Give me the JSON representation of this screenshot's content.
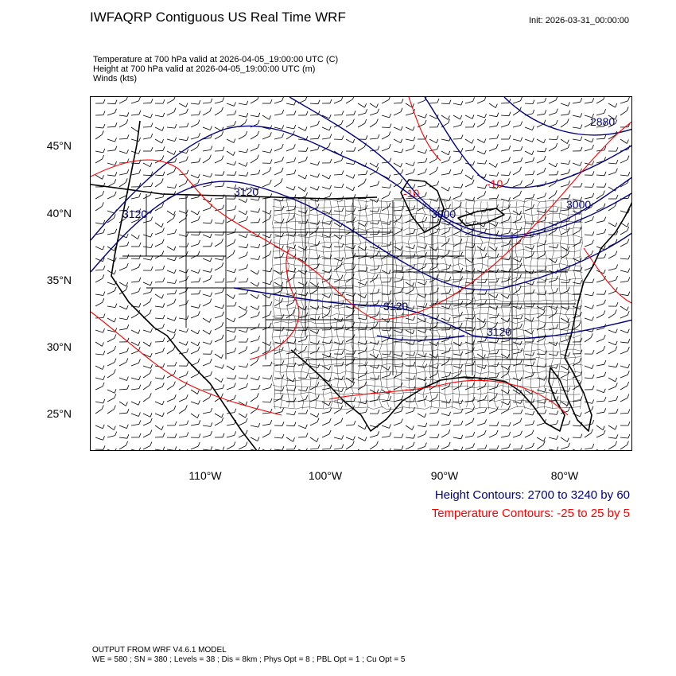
{
  "title": "IWFAQRP Contiguous US Real Time WRF",
  "init_time": "Init: 2026-03-31_00:00:00",
  "fields": [
    "Temperature at 700 hPa valid at 2026-04-05_19:00:00 UTC   (C)",
    "Height at 700 hPa valid at 2026-04-05_19:00:00 UTC   (m)",
    "Winds   (kts)"
  ],
  "map": {
    "lat_ticks": [
      "45°N",
      "40°N",
      "35°N",
      "30°N",
      "25°N"
    ],
    "lon_ticks": [
      "110°W",
      "100°W",
      "90°W",
      "80°W"
    ],
    "height_contour_labels": [
      "2880",
      "3120",
      "3120",
      "3000",
      "3000",
      "3120",
      "3120"
    ],
    "temp_contour_labels": [
      "-10",
      "-10"
    ],
    "colors": {
      "height_contours": "#000080",
      "temp_contours": "#ff0000",
      "boundaries": "#000000",
      "wind_barbs": "#000000"
    }
  },
  "legend": {
    "height": "Height Contours: 2700 to 3240 by 60",
    "temperature": "Temperature Contours: -25 to 25 by 5"
  },
  "footer": {
    "line1": "OUTPUT FROM WRF V4.6.1 MODEL",
    "line2": "WE = 580 ; SN = 380 ; Levels = 38 ; Dis = 8km ; Phys Opt = 8 ; PBL Opt = 1 ; Cu Opt = 5"
  }
}
